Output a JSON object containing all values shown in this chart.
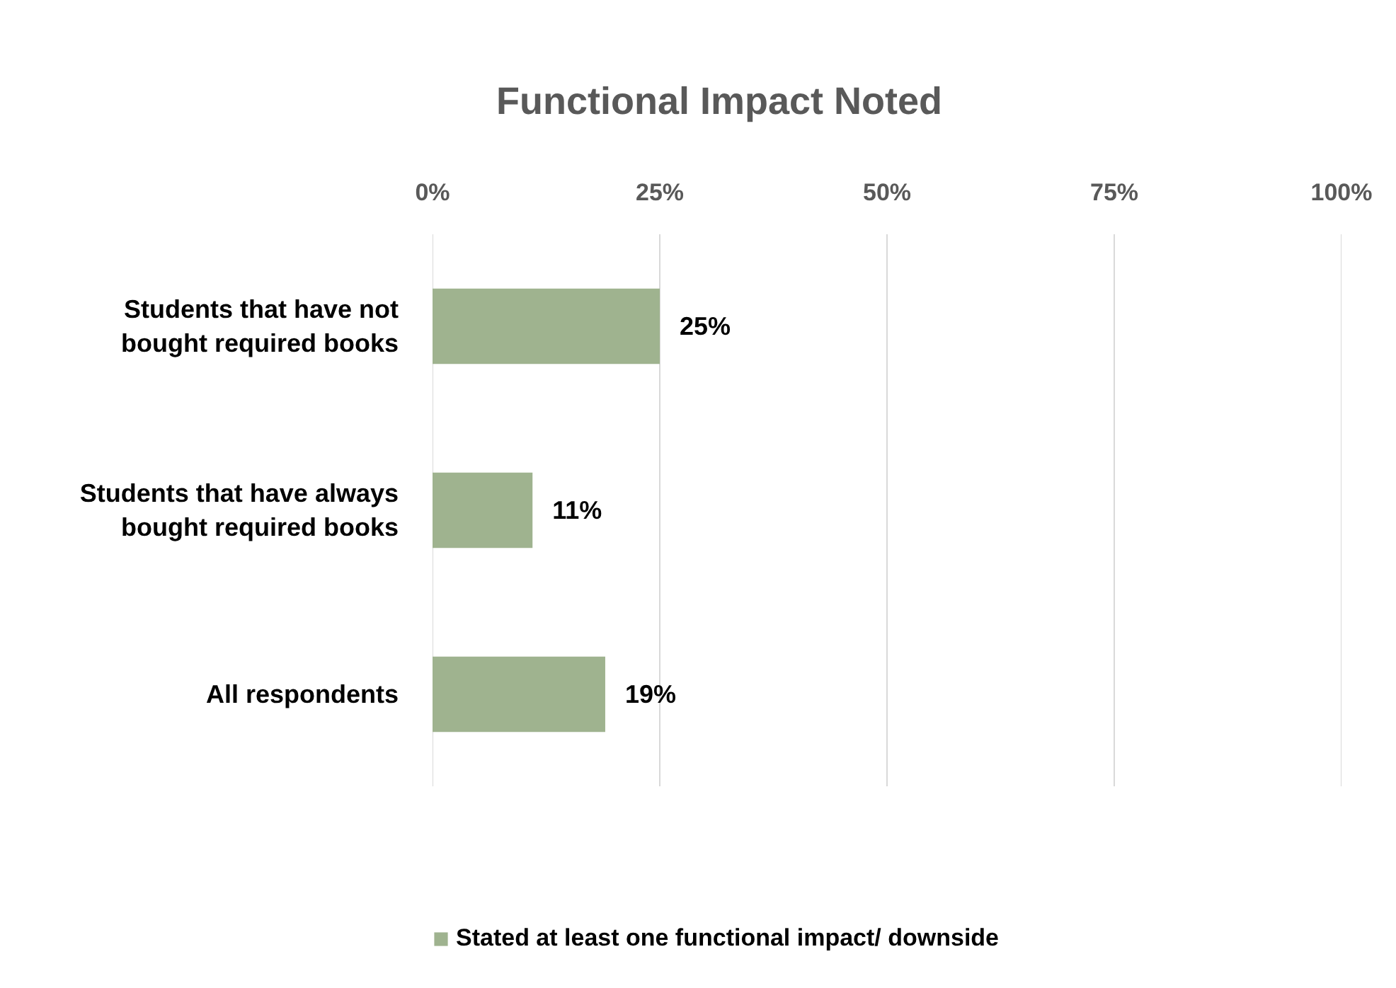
{
  "chart_data": {
    "type": "bar",
    "orientation": "horizontal",
    "title": "Functional Impact Noted",
    "categories": [
      "Students that have not bought required books",
      "Students that have always bought required books",
      "All respondents"
    ],
    "series": [
      {
        "name": "Stated at least one functional impact/ downside",
        "color": "#9fb38f",
        "values": [
          25,
          11,
          19
        ],
        "value_labels": [
          "25%",
          "11%",
          "19%"
        ]
      }
    ],
    "xlim": [
      0,
      100
    ],
    "xticks": [
      {
        "value": 0,
        "label": "0%"
      },
      {
        "value": 25,
        "label": "25%"
      },
      {
        "value": 50,
        "label": "50%"
      },
      {
        "value": 75,
        "label": "75%"
      },
      {
        "value": 100,
        "label": "100%"
      }
    ],
    "grid": "x",
    "legend": "bottom"
  }
}
